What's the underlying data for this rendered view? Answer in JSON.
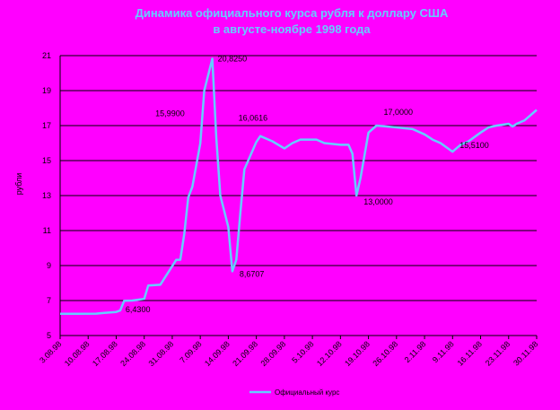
{
  "chart_data": {
    "type": "line",
    "title": "Динамика официального курса рубля к доллару США",
    "subtitle": "в августе-ноябре 1998 года",
    "y_label": "рубли",
    "grid": true,
    "legend": "bottom",
    "xlim": [
      "1998-08-03",
      "1998-11-30"
    ],
    "xticks": [
      {
        "value": "1998-08-03",
        "label": "3.08.98"
      },
      {
        "value": "1998-08-10",
        "label": "10.08.98"
      },
      {
        "value": "1998-08-17",
        "label": "17.08.98"
      },
      {
        "value": "1998-08-24",
        "label": "24.08.98"
      },
      {
        "value": "1998-08-31",
        "label": "31.08.98"
      },
      {
        "value": "1998-09-07",
        "label": "7.09.98"
      },
      {
        "value": "1998-09-14",
        "label": "14.09.98"
      },
      {
        "value": "1998-09-21",
        "label": "21.09.98"
      },
      {
        "value": "1998-09-28",
        "label": "28.09.98"
      },
      {
        "value": "1998-10-05",
        "label": "5.10.98"
      },
      {
        "value": "1998-10-12",
        "label": "12.10.98"
      },
      {
        "value": "1998-10-19",
        "label": "19.10.98"
      },
      {
        "value": "1998-10-26",
        "label": "26.10.98"
      },
      {
        "value": "1998-11-02",
        "label": "2.11.98"
      },
      {
        "value": "1998-11-09",
        "label": "9.11.98"
      },
      {
        "value": "1998-11-16",
        "label": "16.11.98"
      },
      {
        "value": "1998-11-23",
        "label": "23.11.98"
      },
      {
        "value": "1998-11-30",
        "label": "30.11.98"
      }
    ],
    "ylim": [
      5,
      21
    ],
    "yticks": [
      5,
      7,
      9,
      11,
      13,
      15,
      17,
      19,
      21
    ],
    "x": [
      "1998-08-03",
      "1998-08-07",
      "1998-08-12",
      "1998-08-14",
      "1998-08-17",
      "1998-08-18",
      "1998-08-19",
      "1998-08-21",
      "1998-08-24",
      "1998-08-25",
      "1998-08-28",
      "1998-09-01",
      "1998-09-02",
      "1998-09-03",
      "1998-09-04",
      "1998-09-05",
      "1998-09-07",
      "1998-09-08",
      "1998-09-10",
      "1998-09-11",
      "1998-09-12",
      "1998-09-14",
      "1998-09-15",
      "1998-09-16",
      "1998-09-17",
      "1998-09-18",
      "1998-09-21",
      "1998-09-22",
      "1998-09-25",
      "1998-09-28",
      "1998-09-30",
      "1998-10-02",
      "1998-10-06",
      "1998-10-08",
      "1998-10-12",
      "1998-10-14",
      "1998-10-15",
      "1998-10-16",
      "1998-10-17",
      "1998-10-19",
      "1998-10-21",
      "1998-10-26",
      "1998-10-30",
      "1998-11-02",
      "1998-11-04",
      "1998-11-06",
      "1998-11-09",
      "1998-11-11",
      "1998-11-13",
      "1998-11-16",
      "1998-11-18",
      "1998-11-20",
      "1998-11-23",
      "1998-11-24",
      "1998-11-25",
      "1998-11-27",
      "1998-11-30"
    ],
    "series": [
      {
        "name": "Официальный курс",
        "color": "#66ccff",
        "values": [
          6.24,
          6.24,
          6.25,
          6.29,
          6.35,
          6.43,
          6.99,
          7.0,
          7.1,
          7.86,
          7.9,
          9.33,
          9.33,
          10.8,
          12.9,
          13.5,
          15.99,
          19.0,
          20.825,
          16.3,
          13.0,
          11.2,
          8.6707,
          9.33,
          12.0,
          14.5,
          16.0616,
          16.4,
          16.1,
          15.7,
          16.0,
          16.2,
          16.2,
          16.0,
          15.9,
          15.9,
          15.4,
          13.0,
          14.0,
          16.6,
          17.0,
          16.9,
          16.8,
          16.5,
          16.2,
          16.0,
          15.51,
          15.9,
          16.1,
          16.6,
          16.9,
          17.0,
          17.1,
          16.95,
          17.1,
          17.3,
          17.9
        ],
        "value_labels": [
          null,
          null,
          null,
          null,
          null,
          "6,4300",
          null,
          null,
          null,
          null,
          null,
          null,
          null,
          null,
          null,
          null,
          "15,9900",
          null,
          "20,8250",
          null,
          null,
          null,
          "8,6707",
          null,
          null,
          null,
          "16,0616",
          null,
          null,
          null,
          null,
          null,
          null,
          null,
          null,
          null,
          null,
          "13,0000",
          null,
          null,
          "17,0000",
          null,
          null,
          null,
          null,
          null,
          "15,5100",
          null,
          null,
          null,
          null,
          null,
          null,
          null,
          null,
          null,
          null
        ]
      }
    ]
  }
}
